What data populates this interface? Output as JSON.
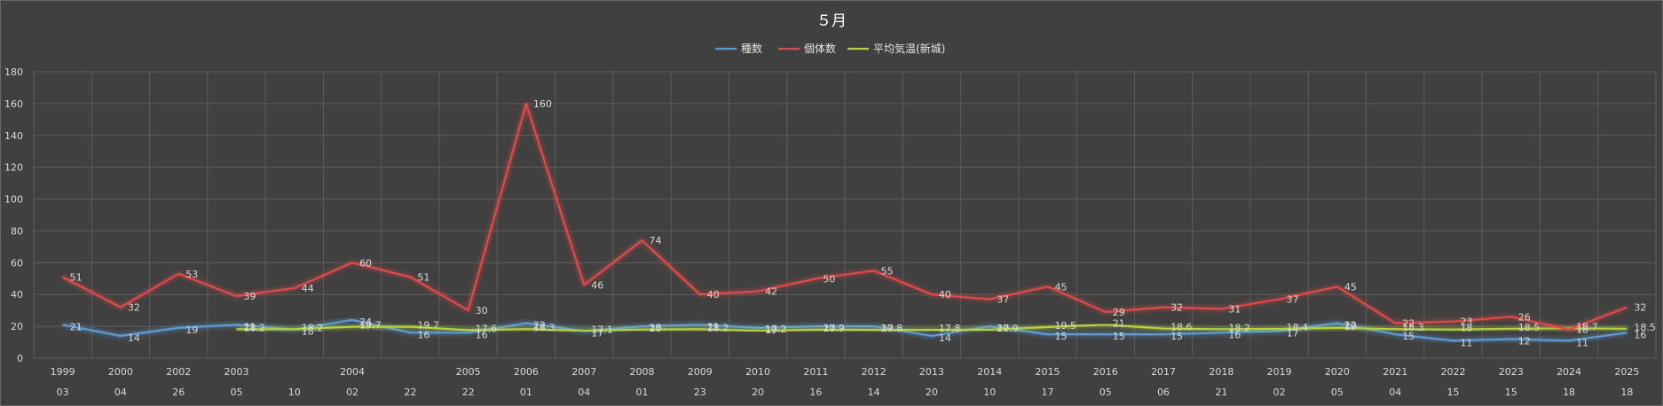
{
  "chart_data": {
    "type": "line",
    "title": "５月",
    "legend_position": "top-center",
    "grid": true,
    "ylim": [
      0,
      180
    ],
    "yticks": [
      0,
      20,
      40,
      60,
      80,
      100,
      120,
      140,
      160,
      180
    ],
    "x_year_labels": [
      "1999",
      "2000",
      "2002",
      "2003",
      "",
      "2004",
      "",
      "2005",
      "2006",
      "2007",
      "2008",
      "2009",
      "2010",
      "2011",
      "2012",
      "2013",
      "2014",
      "2015",
      "2016",
      "2017",
      "2018",
      "2019",
      "2020",
      "2021",
      "2022",
      "2023",
      "2024",
      "2025"
    ],
    "x_day_labels": [
      "03",
      "04",
      "26",
      "05",
      "10",
      "02",
      "22",
      "22",
      "01",
      "04",
      "01",
      "23",
      "20",
      "16",
      "14",
      "20",
      "10",
      "17",
      "05",
      "06",
      "21",
      "02",
      "05",
      "04",
      "15",
      "15",
      "18",
      "18"
    ],
    "series": [
      {
        "name": "種数",
        "color": "#5b9bd5",
        "labels": true,
        "values": [
          21,
          14,
          19,
          21,
          18,
          24,
          16,
          16,
          22,
          17,
          20,
          21,
          19,
          20,
          20,
          14,
          20,
          15,
          15,
          15,
          16,
          17,
          22,
          15,
          11,
          12,
          11,
          16
        ]
      },
      {
        "name": "個体数",
        "color": "#e04848",
        "labels": true,
        "values": [
          51,
          32,
          53,
          39,
          44,
          60,
          51,
          30,
          160,
          46,
          74,
          40,
          42,
          50,
          55,
          40,
          37,
          45,
          29,
          32,
          31,
          37,
          45,
          22,
          23,
          26,
          18,
          32
        ]
      },
      {
        "name": "平均気温(新城)",
        "color": "#b4d33c",
        "labels": true,
        "values": [
          null,
          null,
          null,
          18.2,
          18.2,
          19.7,
          19.7,
          17.6,
          18.3,
          17.1,
          18,
          18.2,
          17.2,
          17.9,
          17.8,
          17.8,
          17.9,
          19.5,
          21,
          18.6,
          18.2,
          18.4,
          19,
          18.3,
          18,
          18.5,
          18.7,
          18.5
        ]
      }
    ]
  }
}
